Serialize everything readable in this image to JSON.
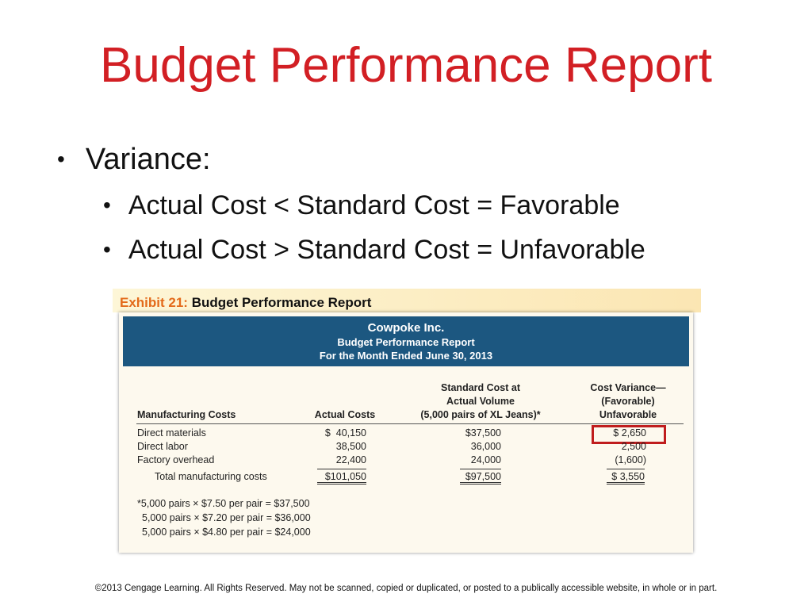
{
  "slide": {
    "title": "Budget Performance Report",
    "bullets": {
      "level1": "Variance:",
      "level2": [
        "Actual Cost < Standard Cost = Favorable",
        "Actual Cost > Standard Cost = Unfavorable"
      ]
    },
    "footer": "©2013 Cengage Learning. All Rights Reserved. May not be scanned, copied or duplicated, or posted to a publically accessible website, in whole or in part."
  },
  "exhibit": {
    "number": "Exhibit 21:",
    "title": "Budget Performance Report",
    "company": "Cowpoke Inc.",
    "report_name": "Budget Performance Report",
    "period": "For the Month Ended June 30, 2013",
    "columns": {
      "label": "Manufacturing Costs",
      "actual": "Actual Costs",
      "standard": [
        "Standard Cost at",
        "Actual Volume",
        "(5,000 pairs of XL Jeans)*"
      ],
      "variance": [
        "Cost Variance—",
        "(Favorable)",
        "Unfavorable"
      ]
    },
    "rows": [
      {
        "label": "Direct materials",
        "actual": "$  40,150",
        "standard": "$37,500",
        "variance": "$ 2,650"
      },
      {
        "label": "Direct labor",
        "actual": "38,500",
        "standard": "36,000",
        "variance": "2,500"
      },
      {
        "label": "Factory overhead",
        "actual": "22,400",
        "standard": "24,000",
        "variance": "(1,600)"
      }
    ],
    "total": {
      "label": "Total manufacturing costs",
      "actual": "$101,050",
      "standard": "$97,500",
      "variance": "$ 3,550"
    },
    "notes": [
      "*5,000 pairs × $7.50 per pair = $37,500",
      "5,000 pairs × $7.20 per pair = $36,000",
      "5,000 pairs × $4.80 per pair = $24,000"
    ],
    "highlight_color": "#c01d1d"
  },
  "colors": {
    "title": "#d21f24",
    "exhibit_number": "#e36a1a",
    "header_band": "#1c5780"
  }
}
